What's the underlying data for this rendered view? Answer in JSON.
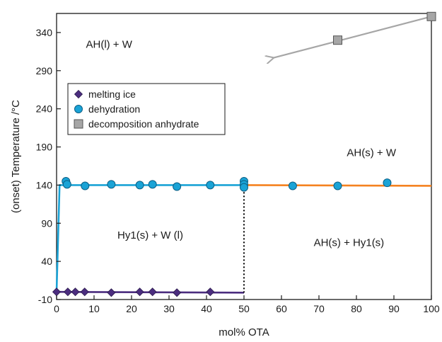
{
  "chart_data": {
    "type": "scatter",
    "title": "",
    "xlabel": "mol% OTA",
    "ylabel": "(onset) Temperature /°C",
    "xlim": [
      0,
      100
    ],
    "ylim": [
      -10,
      365
    ],
    "x_ticks": [
      0,
      10,
      20,
      30,
      40,
      50,
      60,
      70,
      80,
      90,
      100
    ],
    "y_ticks": [
      -10,
      40,
      90,
      140,
      190,
      240,
      290,
      340
    ],
    "grid": false,
    "legend_position": "upper-left",
    "legend": [
      {
        "label": "melting ice",
        "marker": "diamond",
        "color": "#4b2d7f"
      },
      {
        "label": "dehydration",
        "marker": "circle",
        "color": "#1aa3d6"
      },
      {
        "label": "decomposition anhydrate",
        "marker": "square",
        "color": "#a6a6a6"
      }
    ],
    "series": [
      {
        "name": "melting ice",
        "marker": "diamond",
        "color": "#4b2d7f",
        "points": [
          [
            0,
            0
          ],
          [
            3,
            0
          ],
          [
            5,
            0
          ],
          [
            7.5,
            0
          ],
          [
            14.6,
            -1
          ],
          [
            22.2,
            0
          ],
          [
            25.6,
            0
          ],
          [
            32.1,
            -1
          ],
          [
            41,
            0
          ]
        ]
      },
      {
        "name": "dehydration",
        "marker": "circle",
        "color": "#1aa3d6",
        "points": [
          [
            2.5,
            145
          ],
          [
            2.8,
            141
          ],
          [
            7.6,
            139
          ],
          [
            14.6,
            141
          ],
          [
            22.2,
            140
          ],
          [
            25.6,
            141
          ],
          [
            32.1,
            138
          ],
          [
            41,
            140
          ],
          [
            50,
            145
          ],
          [
            50,
            141
          ],
          [
            50,
            137
          ],
          [
            63,
            139
          ],
          [
            75,
            139
          ],
          [
            88.2,
            143
          ]
        ]
      },
      {
        "name": "decomposition anhydrate",
        "marker": "square",
        "color": "#a6a6a6",
        "points": [
          [
            75,
            330
          ],
          [
            100,
            361
          ]
        ]
      }
    ],
    "lines": [
      {
        "role": "ice-melting-line",
        "color": "#4b2d7f",
        "points": [
          [
            0,
            0
          ],
          [
            50,
            -1
          ]
        ]
      },
      {
        "role": "dehydration-line-left",
        "color": "#1aa3d6",
        "points": [
          [
            0,
            0
          ],
          [
            0.8,
            140
          ],
          [
            50,
            140
          ]
        ]
      },
      {
        "role": "dehydration-line-right",
        "color": "#f58220",
        "points": [
          [
            50,
            140
          ],
          [
            100,
            139
          ]
        ]
      },
      {
        "role": "boundary-50",
        "color": "#000000",
        "style": "dotted",
        "points": [
          [
            50,
            140
          ],
          [
            50,
            -1
          ]
        ]
      },
      {
        "role": "decomposition-arrow",
        "color": "#a6a6a6",
        "points": [
          [
            100,
            361
          ],
          [
            58,
            307
          ]
        ]
      }
    ],
    "annotations": [
      {
        "text": "AH(l) + W",
        "x": 14,
        "y": 320
      },
      {
        "text": "AH(s) + W",
        "x": 84,
        "y": 178
      },
      {
        "text": "Hy1(s) + W (l)",
        "x": 25,
        "y": 70
      },
      {
        "text": "AH(s) + Hy1(s)",
        "x": 78,
        "y": 60
      }
    ]
  }
}
